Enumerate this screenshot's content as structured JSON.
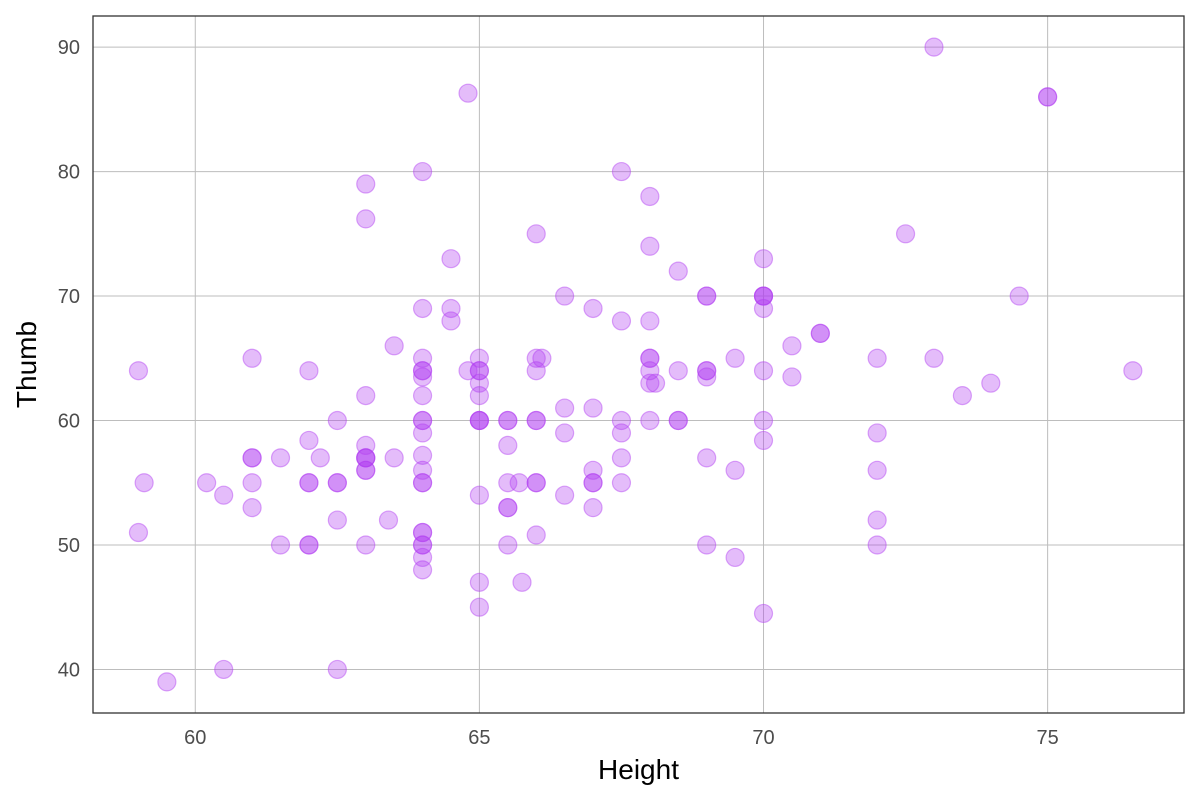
{
  "chart_data": {
    "type": "scatter",
    "title": "",
    "xlabel": "Height",
    "ylabel": "Thumb",
    "xlim": [
      58.2,
      77.4
    ],
    "ylim": [
      36.5,
      92.5
    ],
    "xticks": [
      60,
      65,
      70,
      75
    ],
    "yticks": [
      40,
      50,
      60,
      70,
      80,
      90
    ],
    "grid": true,
    "legend": "none",
    "point_color": "#b23ff2",
    "point_opacity": 0.35,
    "series": [
      {
        "x": [
          59,
          59,
          59.1,
          59.5,
          60.2,
          60.5,
          60.5,
          61,
          61,
          61,
          61,
          61,
          61.5,
          61.5,
          62,
          62,
          62,
          62,
          62,
          62,
          62.2,
          62.5,
          62.5,
          62.5,
          62.5,
          62.5,
          63,
          63,
          63,
          63,
          63,
          63,
          63,
          63,
          63,
          63,
          63.4,
          63.5,
          63.5,
          64,
          64,
          64,
          64,
          64,
          64,
          64,
          64,
          64,
          64,
          64,
          64,
          64,
          64,
          64,
          64,
          64,
          64,
          64,
          64,
          64.5,
          64.5,
          64.5,
          64.8,
          64.8,
          65,
          65,
          65,
          65,
          65,
          65,
          65,
          65,
          65,
          65,
          65,
          65.5,
          65.5,
          65.5,
          65.5,
          65.5,
          65.5,
          65.5,
          65.7,
          65.75,
          66,
          66,
          66,
          66,
          66,
          66,
          66,
          66,
          66.1,
          66.5,
          66.5,
          66.5,
          66.5,
          67,
          67,
          67,
          67,
          67,
          67,
          67.5,
          67.5,
          67.5,
          67.5,
          67.5,
          67.5,
          68,
          68,
          68,
          68,
          68,
          68,
          68,
          68,
          68.1,
          68.5,
          68.5,
          68.5,
          68.5,
          69,
          69,
          69,
          69,
          69,
          69,
          69,
          69.5,
          69.5,
          69.5,
          70,
          70,
          70,
          70,
          70,
          70,
          70,
          70,
          70,
          70.5,
          70.5,
          71,
          71,
          72,
          72,
          72,
          72,
          72,
          72.5,
          73,
          73,
          73.5,
          74,
          74.5,
          75,
          75,
          76.5
        ],
        "y": [
          64,
          51,
          55,
          39,
          55,
          54,
          40,
          65,
          57,
          57,
          55,
          53,
          57,
          50,
          64,
          58.4,
          55,
          55,
          50,
          50,
          57,
          60,
          55,
          55,
          52,
          40,
          79,
          76.2,
          62,
          58,
          57,
          57,
          56,
          56,
          50,
          57,
          52,
          66,
          57,
          80,
          69,
          65,
          64,
          63.5,
          62,
          60,
          60,
          59,
          57.2,
          56,
          55,
          55,
          51,
          51,
          50,
          50,
          49,
          48,
          64,
          73,
          69,
          68,
          86.3,
          64,
          65,
          64,
          63,
          62,
          60,
          60,
          54,
          47,
          45,
          64,
          60,
          60,
          60,
          58,
          55,
          53,
          53,
          50,
          55,
          47,
          75,
          65,
          64,
          60,
          60,
          55,
          55,
          50.8,
          65,
          70,
          61,
          59,
          54,
          69,
          61,
          56,
          55,
          55,
          53,
          80,
          68,
          60,
          59,
          57,
          55,
          78,
          74,
          68,
          65,
          65,
          64,
          63,
          60,
          63,
          72,
          64,
          60,
          60,
          70,
          70,
          64,
          64,
          63.5,
          57,
          50,
          65,
          56,
          49,
          73,
          70,
          70,
          69,
          64,
          60,
          58.4,
          44.5,
          70,
          66,
          63.5,
          67,
          67,
          65,
          59,
          56,
          52,
          50,
          75,
          90,
          65,
          62,
          63,
          70,
          86,
          86,
          64
        ]
      }
    ]
  }
}
